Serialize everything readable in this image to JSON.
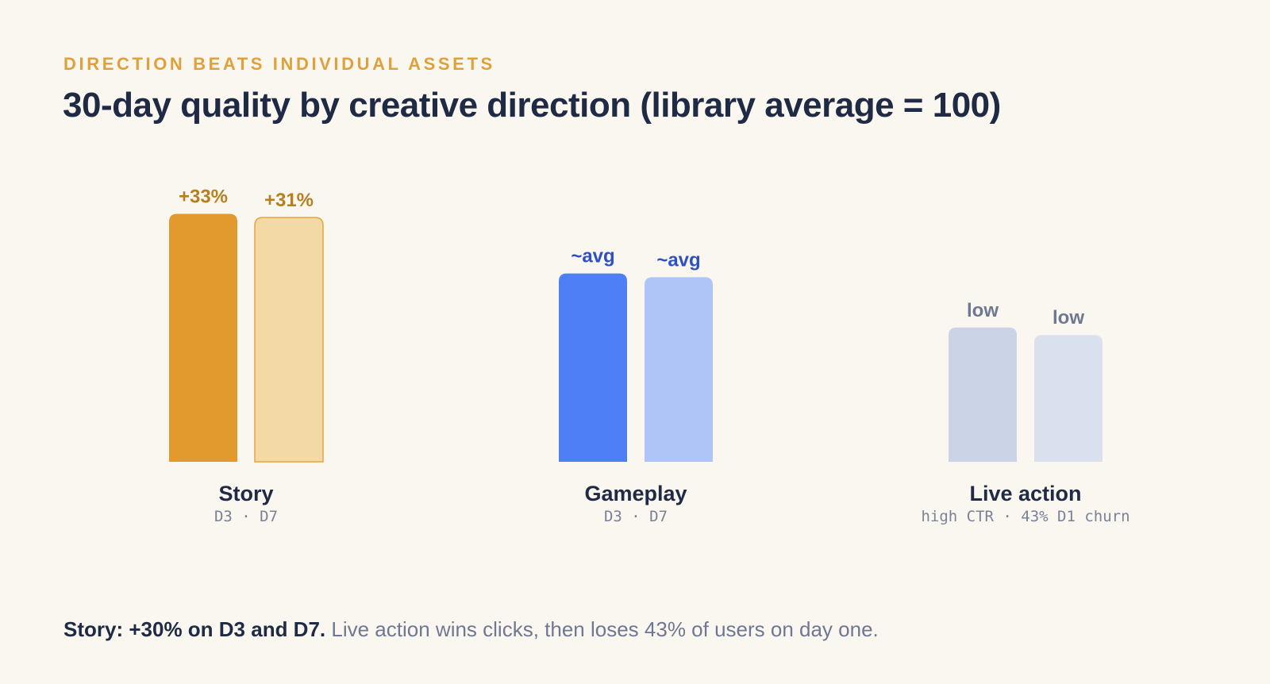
{
  "eyebrow": "DIRECTION BEATS INDIVIDUAL ASSETS",
  "title": "30-day quality by creative direction (library average = 100)",
  "chart_data": {
    "type": "bar",
    "baseline": 100,
    "categories": [
      "Story",
      "Gameplay",
      "Live action"
    ],
    "category_notes": [
      "D3 · D7",
      "D3 · D7",
      "high CTR · 43% D1 churn"
    ],
    "series": [
      {
        "metric": "D3",
        "values": [
          133,
          101,
          72
        ],
        "labels": [
          "+33%",
          "~avg",
          "low"
        ]
      },
      {
        "metric": "D7",
        "values": [
          131,
          99,
          68
        ],
        "labels": [
          "+31%",
          "~avg",
          "low"
        ]
      }
    ],
    "ylim": [
      0,
      140
    ],
    "grid": false,
    "legend": "none"
  },
  "colors": {
    "story": [
      "#E29A2E",
      "#F3D9A6"
    ],
    "story_d7_border": "#E3A640",
    "story_label": "#B87F1E",
    "gameplay": [
      "#4E7FF5",
      "#AFC5F7"
    ],
    "gameplay_label": "#2F50C0",
    "live_action": [
      "#CAD4E6",
      "#DAE1EE"
    ],
    "live_action_label": "#6E7890"
  },
  "footer": {
    "strong": "Story: +30% on D3 and D7.",
    "muted": "Live action wins clicks, then loses 43% of users on day one."
  }
}
